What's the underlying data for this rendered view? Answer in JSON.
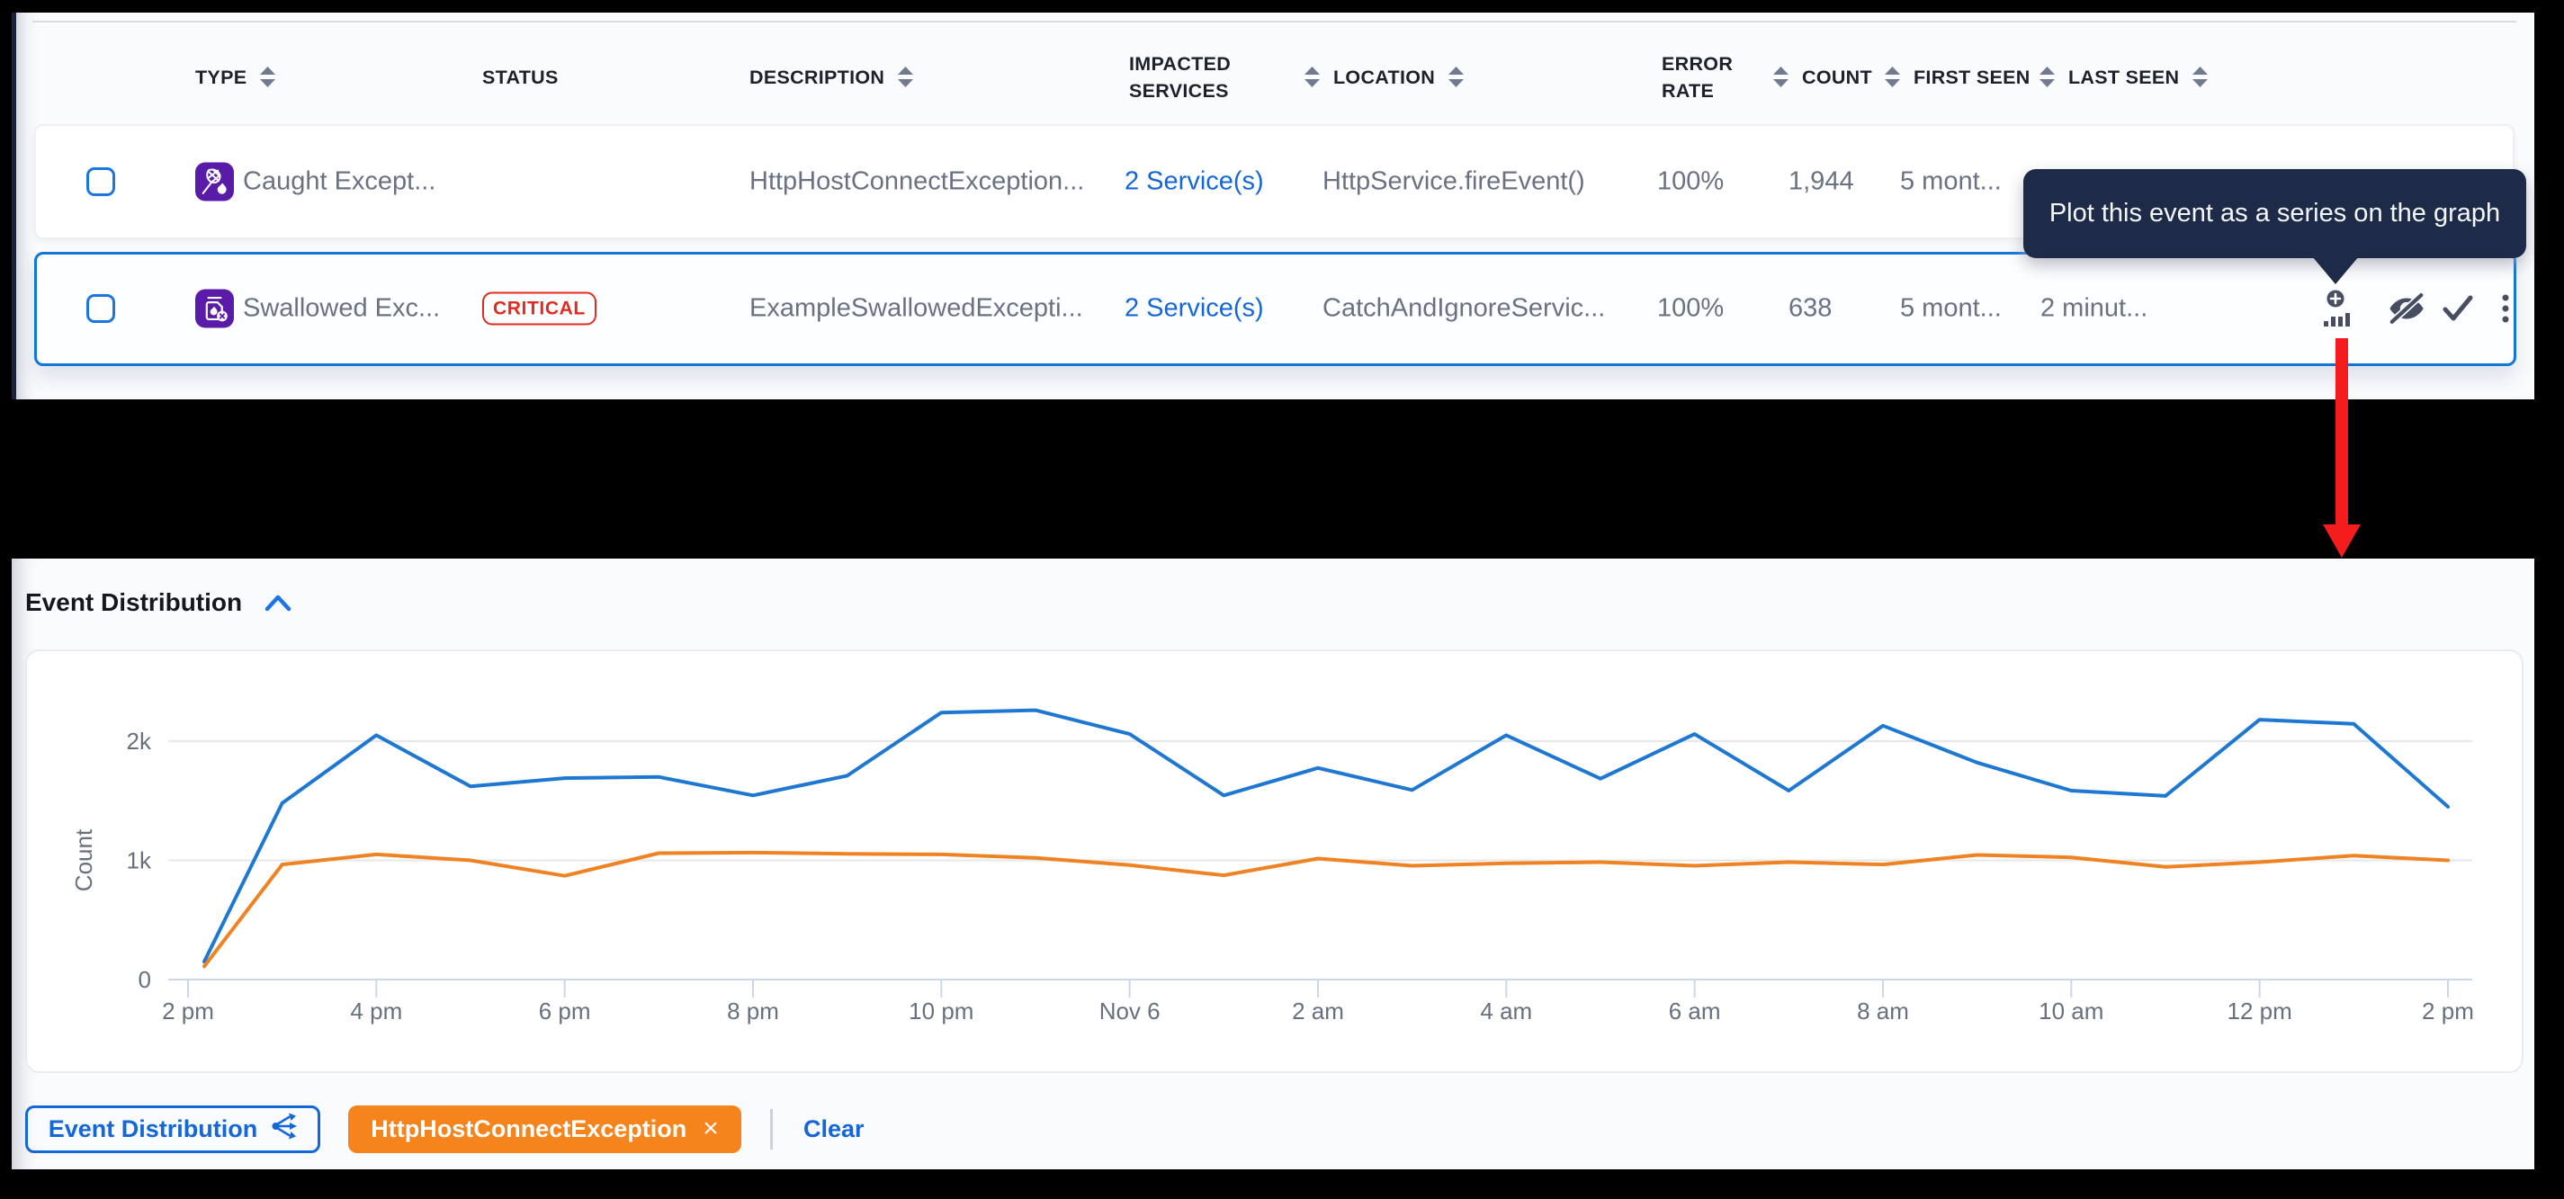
{
  "colors": {
    "bg_black": "#000000",
    "panel_bg": "#fafbfd",
    "navy_strip": "#19233d",
    "header_hairline": "#d9dce3",
    "header_text": "#1c212b",
    "row_bg": "#ffffff",
    "row_border": "#edeff3",
    "row_text": "#6a7183",
    "link_blue": "#1467d8",
    "select_blue": "#1276d8",
    "checkbox_blue": "#1b77e0",
    "critical_red": "#e02b20",
    "icon_purple": "#5a1ca8",
    "slate_icon": "#474e63",
    "tooltip_bg": "#1d2b49",
    "arrow_red": "#f41c1c",
    "chip_orange": "#f5841d"
  },
  "table": {
    "columns": [
      {
        "label": "TYPE"
      },
      {
        "label": "STATUS"
      },
      {
        "label": "DESCRIPTION"
      },
      {
        "label": "IMPACTED SERVICES",
        "line1": "IMPACTED",
        "line2": "SERVICES"
      },
      {
        "label": "LOCATION"
      },
      {
        "label": "ERROR RATE",
        "line1": "ERROR",
        "line2": "RATE"
      },
      {
        "label": "COUNT"
      },
      {
        "label": "FIRST SEEN"
      },
      {
        "label": "LAST SEEN"
      }
    ],
    "rows": [
      {
        "type": "Caught Except...",
        "status": "",
        "description": "HttpHostConnectException...",
        "impacted_services": "2 Service(s)",
        "location": "HttpService.fireEvent()",
        "error_rate": "100%",
        "count": "1,944",
        "first_seen": "5 mont...",
        "last_seen": ""
      },
      {
        "type": "Swallowed Exc...",
        "status": "CRITICAL",
        "description": "ExampleSwallowedExcepti...",
        "impacted_services": "2 Service(s)",
        "location": "CatchAndIgnoreServic...",
        "error_rate": "100%",
        "count": "638",
        "first_seen": "5 mont...",
        "last_seen": "2 minut..."
      }
    ]
  },
  "tooltip": {
    "text": "Plot this event as a series on the graph"
  },
  "section": {
    "title": "Event Distribution"
  },
  "footer": {
    "button_label": "Event Distribution",
    "chip_label": "HttpHostConnectException",
    "chip_close": "×",
    "clear_label": "Clear"
  },
  "chart_data": {
    "type": "line",
    "title": "Event Distribution",
    "xlabel": "",
    "ylabel": "Count",
    "grid": true,
    "legend": "none",
    "ylim": [
      0,
      2400
    ],
    "yticks": [
      {
        "value": 0,
        "label": "0"
      },
      {
        "value": 1000,
        "label": "1k"
      },
      {
        "value": 2000,
        "label": "2k"
      }
    ],
    "x_tick_labels": [
      "2 pm",
      "4 pm",
      "6 pm",
      "8 pm",
      "10 pm",
      "Nov 6",
      "2 am",
      "4 am",
      "6 am",
      "8 am",
      "10 am",
      "12 pm",
      "2 pm"
    ],
    "x_hours": [
      "2 pm",
      "3 pm",
      "4 pm",
      "5 pm",
      "6 pm",
      "7 pm",
      "8 pm",
      "9 pm",
      "10 pm",
      "11 pm",
      "Nov 6",
      "1 am",
      "2 am",
      "3 am",
      "4 am",
      "5 am",
      "6 am",
      "7 am",
      "8 am",
      "9 am",
      "10 am",
      "11 am",
      "12 pm",
      "1 pm",
      "2 pm"
    ],
    "series": [
      {
        "name": "Event Distribution",
        "color": "#1e78d2",
        "values": [
          150,
          1480,
          2050,
          1620,
          1690,
          1700,
          1545,
          1710,
          2240,
          2260,
          2060,
          1545,
          1775,
          1590,
          2050,
          1685,
          2060,
          1585,
          2130,
          1820,
          1585,
          1540,
          2180,
          2145,
          1450
        ]
      },
      {
        "name": "HttpHostConnectException",
        "color": "#ef8222",
        "values": [
          110,
          965,
          1050,
          1000,
          870,
          1060,
          1065,
          1055,
          1050,
          1020,
          960,
          875,
          1015,
          955,
          975,
          985,
          955,
          985,
          965,
          1045,
          1025,
          945,
          985,
          1040,
          1000
        ]
      }
    ],
    "axis_color": "#ccd6eb",
    "gridline_color": "#e6e7e9",
    "tick_text_color": "#68707f"
  }
}
